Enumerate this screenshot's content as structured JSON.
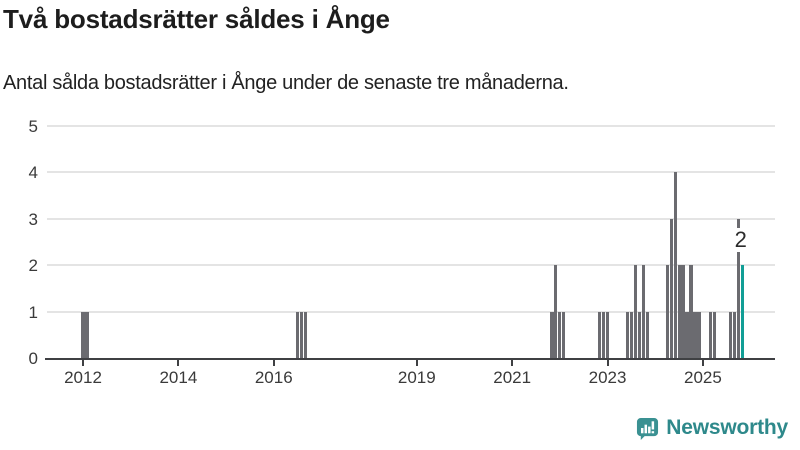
{
  "header": {
    "title": "Två bostadsrätter såldes i Ånge",
    "subtitle": "Antal sålda bostadsrätter i Ånge under de senaste tre månaderna."
  },
  "footer": {
    "brand": "Newsworthy",
    "brand_color": "#2e898b",
    "logo_icon": "bar-chart-speech-bubble-icon"
  },
  "chart_data": {
    "type": "bar",
    "title": "Två bostadsrätter såldes i Ånge",
    "subtitle": "Antal sålda bostadsrätter i Ånge under de senaste tre månaderna.",
    "xlabel": "",
    "ylabel": "",
    "ylim": [
      0,
      5
    ],
    "y_ticks": [
      0,
      1,
      2,
      3,
      4,
      5
    ],
    "grid": "horizontal",
    "legend": "none",
    "frequency": "monthly",
    "bar_color": "#6b6b70",
    "highlight_color": "#119e96",
    "x_ticks": [
      {
        "label": "2012",
        "month": "2012-01"
      },
      {
        "label": "2014",
        "month": "2014-01"
      },
      {
        "label": "2016",
        "month": "2016-01"
      },
      {
        "label": "2019",
        "month": "2019-01"
      },
      {
        "label": "2021",
        "month": "2021-01"
      },
      {
        "label": "2023",
        "month": "2023-01"
      },
      {
        "label": "2025",
        "month": "2025-01"
      }
    ],
    "points": [
      {
        "month": "2012-01",
        "value": 1
      },
      {
        "month": "2012-02",
        "value": 1
      },
      {
        "month": "2016-07",
        "value": 1
      },
      {
        "month": "2016-08",
        "value": 1
      },
      {
        "month": "2016-09",
        "value": 1
      },
      {
        "month": "2021-11",
        "value": 1
      },
      {
        "month": "2021-12",
        "value": 2
      },
      {
        "month": "2022-01",
        "value": 1
      },
      {
        "month": "2022-02",
        "value": 1
      },
      {
        "month": "2022-11",
        "value": 1
      },
      {
        "month": "2022-12",
        "value": 1
      },
      {
        "month": "2023-01",
        "value": 1
      },
      {
        "month": "2023-06",
        "value": 1
      },
      {
        "month": "2023-07",
        "value": 1
      },
      {
        "month": "2023-08",
        "value": 2
      },
      {
        "month": "2023-09",
        "value": 1
      },
      {
        "month": "2023-10",
        "value": 2
      },
      {
        "month": "2023-11",
        "value": 1
      },
      {
        "month": "2024-04",
        "value": 2
      },
      {
        "month": "2024-05",
        "value": 3
      },
      {
        "month": "2024-06",
        "value": 4
      },
      {
        "month": "2024-07",
        "value": 2
      },
      {
        "month": "2024-08",
        "value": 2
      },
      {
        "month": "2024-09",
        "value": 1
      },
      {
        "month": "2024-10",
        "value": 2
      },
      {
        "month": "2024-11",
        "value": 1
      },
      {
        "month": "2024-12",
        "value": 1
      },
      {
        "month": "2025-03",
        "value": 1
      },
      {
        "month": "2025-04",
        "value": 1
      },
      {
        "month": "2025-08",
        "value": 1
      },
      {
        "month": "2025-09",
        "value": 1
      },
      {
        "month": "2025-10",
        "value": 3
      },
      {
        "month": "2025-11",
        "value": 2,
        "highlight": true
      }
    ],
    "highlight": {
      "month": "2025-11",
      "value": 2,
      "label": "2"
    }
  }
}
